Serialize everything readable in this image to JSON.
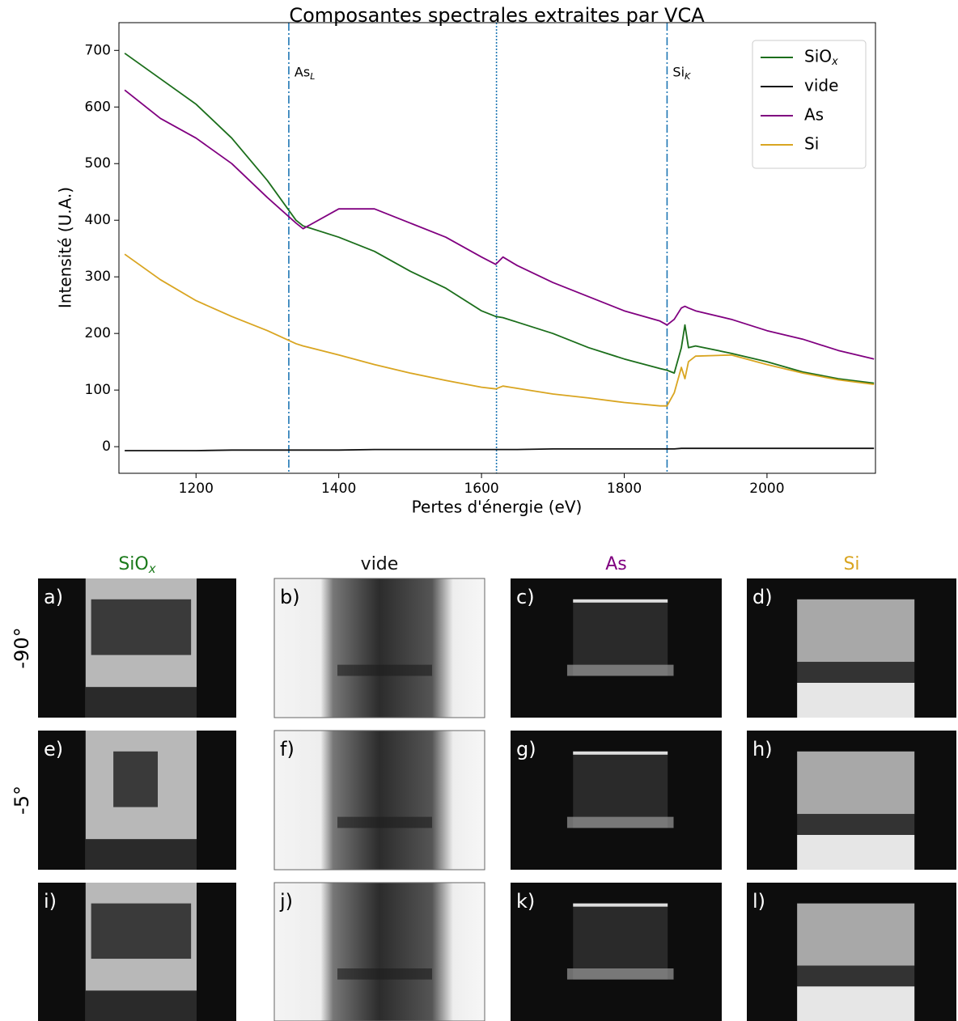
{
  "chart_data": {
    "type": "line",
    "title": "Composantes spectrales extraites par VCA",
    "x_label": "Pertes d'énergie (eV)",
    "y_label": "Intensité (U.A.)",
    "xlim": [
      1092,
      2152
    ],
    "ylim": [
      -47,
      749
    ],
    "xticks": [
      1200,
      1400,
      1600,
      1800,
      2000
    ],
    "yticks": [
      0,
      100,
      200,
      300,
      400,
      500,
      600,
      700
    ],
    "legend": "upper right",
    "x": [
      1100,
      1150,
      1200,
      1250,
      1300,
      1340,
      1350,
      1400,
      1450,
      1500,
      1550,
      1600,
      1620,
      1630,
      1650,
      1700,
      1750,
      1800,
      1850,
      1860,
      1870,
      1880,
      1885,
      1890,
      1900,
      1950,
      2000,
      2050,
      2100,
      2150
    ],
    "series": [
      {
        "name": "SiO",
        "name_sub": "x",
        "color": "#1b6e1b",
        "values": [
          695,
          650,
          605,
          545,
          470,
          400,
          390,
          370,
          345,
          310,
          280,
          240,
          230,
          228,
          220,
          200,
          175,
          155,
          138,
          135,
          130,
          175,
          215,
          175,
          178,
          165,
          150,
          132,
          120,
          112
        ]
      },
      {
        "name": "vide",
        "color": "#111111",
        "values": [
          -7,
          -7,
          -7,
          -6,
          -6,
          -6,
          -6,
          -6,
          -5,
          -5,
          -5,
          -5,
          -5,
          -5,
          -5,
          -4,
          -4,
          -4,
          -4,
          -4,
          -4,
          -3,
          -3,
          -3,
          -3,
          -3,
          -3,
          -3,
          -3,
          -3
        ]
      },
      {
        "name": "As",
        "color": "#800080",
        "values": [
          630,
          580,
          545,
          500,
          440,
          395,
          385,
          420,
          420,
          395,
          370,
          335,
          322,
          335,
          320,
          290,
          265,
          240,
          222,
          215,
          225,
          245,
          248,
          245,
          240,
          225,
          205,
          190,
          170,
          155
        ]
      },
      {
        "name": "Si",
        "color": "#d9a521",
        "values": [
          340,
          295,
          258,
          230,
          205,
          182,
          178,
          162,
          145,
          130,
          117,
          105,
          102,
          107,
          103,
          93,
          86,
          78,
          72,
          72,
          95,
          140,
          120,
          150,
          160,
          162,
          145,
          130,
          118,
          110
        ]
      }
    ],
    "vlines": [
      {
        "x": 1330,
        "style": "dashdot",
        "color": "#1f77b4",
        "label": "As",
        "label_sub": "L"
      },
      {
        "x": 1621,
        "style": "dotted",
        "color": "#1f77b4"
      },
      {
        "x": 1860,
        "style": "dashdot",
        "color": "#1f77b4",
        "label": "Si",
        "label_sub": "K"
      }
    ]
  },
  "maps": {
    "columns": [
      {
        "title": "SiO",
        "title_sub": "x",
        "color": "#1b7a1b"
      },
      {
        "title": "vide",
        "color": "#111111"
      },
      {
        "title": "As",
        "color": "#800080"
      },
      {
        "title": "Si",
        "color": "#d9a521"
      }
    ],
    "rows": [
      "-90°",
      "-5°"
    ],
    "panels": [
      "a)",
      "b)",
      "c)",
      "d)",
      "e)",
      "f)",
      "g)",
      "h)",
      "i)",
      "j)",
      "k)",
      "l)"
    ]
  }
}
